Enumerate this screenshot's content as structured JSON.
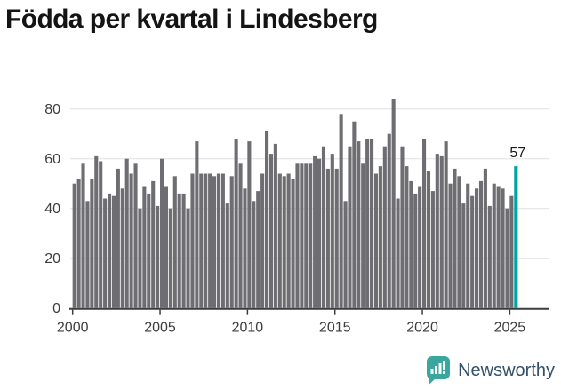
{
  "title": "Födda per kvartal i Lindesberg",
  "logo": {
    "text": "Newsworthy",
    "icon": "newsworthy-speech-bubble-bar-chart",
    "icon_color": "#3aa79e",
    "text_color": "#33506b"
  },
  "colors": {
    "bar": "#6e6e72",
    "highlight": "#00a3a4",
    "gridline": "#e0e0e0",
    "axis": "#3d3d3d",
    "tick_label": "#3d3d3d",
    "title_text": "#141414",
    "value_label": "#1a1a1a"
  },
  "chart_data": {
    "type": "bar",
    "title": "Födda per kvartal i Lindesberg",
    "xlabel": "",
    "ylabel": "",
    "unit": "quarter",
    "start_year": 2000,
    "start_quarter": 1,
    "end_year": 2025,
    "end_quarter": 2,
    "ylim": [
      0,
      80
    ],
    "y_ticks": [
      0,
      20,
      40,
      60,
      80
    ],
    "x_ticks": [
      2000,
      2005,
      2010,
      2015,
      2020,
      2025
    ],
    "grid": "horizontal",
    "highlight_last_bar": true,
    "last_value_label": "57",
    "values": [
      50,
      52,
      58,
      43,
      52,
      61,
      59,
      44,
      46,
      45,
      56,
      48,
      60,
      54,
      58,
      40,
      49,
      46,
      51,
      41,
      60,
      49,
      40,
      53,
      46,
      46,
      40,
      54,
      67,
      54,
      54,
      54,
      53,
      54,
      54,
      42,
      53,
      68,
      58,
      48,
      67,
      43,
      47,
      54,
      71,
      62,
      66,
      54,
      53,
      54,
      52,
      58,
      58,
      58,
      58,
      61,
      60,
      65,
      56,
      62,
      56,
      78,
      43,
      65,
      75,
      67,
      58,
      68,
      68,
      54,
      57,
      65,
      70,
      84,
      44,
      65,
      57,
      51,
      46,
      49,
      68,
      55,
      47,
      62,
      61,
      67,
      50,
      56,
      53,
      42,
      50,
      45,
      48,
      51,
      56,
      41,
      50,
      49,
      48,
      40,
      45,
      57
    ]
  }
}
